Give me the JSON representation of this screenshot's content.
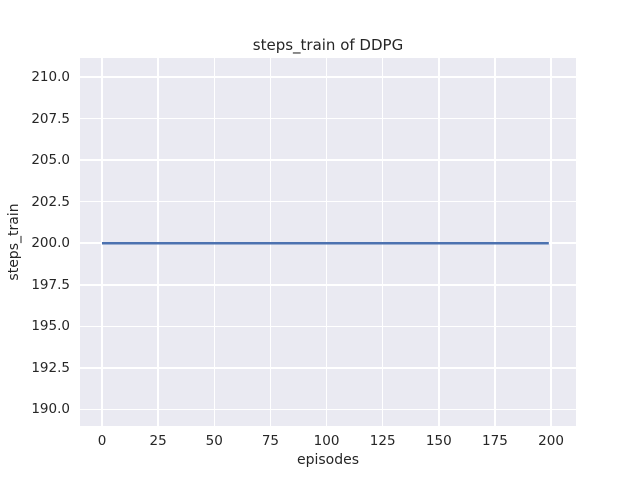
{
  "chart_data": {
    "type": "line",
    "title": "steps_train of DDPG",
    "xlabel": "episodes",
    "ylabel": "steps_train",
    "x_tick_values": [
      0,
      25,
      50,
      75,
      100,
      125,
      150,
      175,
      200
    ],
    "x_tick_labels": [
      "0",
      "25",
      "50",
      "75",
      "100",
      "125",
      "150",
      "175",
      "200"
    ],
    "y_tick_values": [
      190.0,
      192.5,
      195.0,
      197.5,
      200.0,
      202.5,
      205.0,
      207.5,
      210.0
    ],
    "y_tick_labels": [
      "190.0",
      "192.5",
      "195.0",
      "197.5",
      "200.0",
      "202.5",
      "205.0",
      "207.5",
      "210.0"
    ],
    "xlim": [
      -9.8,
      211.1
    ],
    "ylim": [
      189.0,
      211.15
    ],
    "grid": true,
    "legend": null,
    "series": [
      {
        "name": "steps_train",
        "x": [
          0,
          199
        ],
        "values": [
          200,
          200
        ],
        "color": "#4C72B0",
        "linewidth": 2.4
      }
    ],
    "style": {
      "plot_background": "#EAEAF2",
      "gridline_color": "#FFFFFF",
      "text_color": "#262626"
    }
  }
}
